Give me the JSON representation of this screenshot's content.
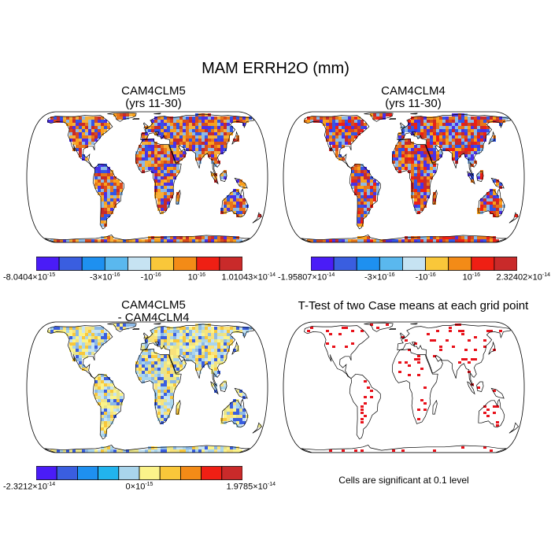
{
  "title": "MAM ERRH2O (mm)",
  "panels": [
    {
      "id": "p1",
      "title_line1": "CAM4CLM5",
      "title_line2": "(yrs 11-30)",
      "colorbar": {
        "colors": [
          "#4a1cf7",
          "#3a5ee0",
          "#1e90f0",
          "#5ab8ee",
          "#c6e3f2",
          "#f9c73a",
          "#f38b17",
          "#ef1f14",
          "#c92a2a"
        ],
        "labels": [
          "-8.0404×10^-15",
          "-3×10^-16",
          "-10^-16",
          "10^-16",
          "1.01043×10^-14"
        ]
      },
      "map_palette": [
        "#f9a11c",
        "#f5b03a",
        "#e8781a",
        "#d94b1b",
        "#4a30e8",
        "#3355e6",
        "#8cb9e6",
        "#c92a2a"
      ]
    },
    {
      "id": "p2",
      "title_line1": "CAM4CLM4",
      "title_line2": "(yrs 11-30)",
      "colorbar": {
        "colors": [
          "#4a1cf7",
          "#3a5ee0",
          "#1e90f0",
          "#5ab8ee",
          "#c6e3f2",
          "#f9c73a",
          "#f38b17",
          "#ef1f14",
          "#c92a2a"
        ],
        "labels": [
          "-1.95807×10^-14",
          "-3×10^-16",
          "-10^-16",
          "10^-16",
          "2.32402×10^-14"
        ]
      },
      "map_palette": [
        "#f9a11c",
        "#e8781a",
        "#d94b1b",
        "#c92a2a",
        "#4a30e8",
        "#3355e6",
        "#8cb9e6",
        "#ef1f14"
      ]
    },
    {
      "id": "p3",
      "title_line1": "CAM4CLM5",
      "title_line2": "- CAM4CLM4",
      "colorbar": {
        "colors": [
          "#4a1cf7",
          "#3a5ee0",
          "#1e90f0",
          "#22b4ee",
          "#a9d5ec",
          "#fbf38a",
          "#f9c73a",
          "#f38b17",
          "#ef1f14",
          "#c92a2a"
        ],
        "labels": [
          "-2.3212×10^-14",
          "0×10^-15",
          "1.9785×10^-14"
        ]
      },
      "map_palette": [
        "#fbf38a",
        "#c6e3f2",
        "#a9d5ec",
        "#f9e27a",
        "#3a5ee0",
        "#f9c73a",
        "#8cb9e6",
        "#e8e48a"
      ]
    },
    {
      "id": "p4",
      "title": "T-Test of two Case means at each grid point",
      "note": "Cells are significant at 0.1 level",
      "dot_color": "#e8111a"
    }
  ]
}
